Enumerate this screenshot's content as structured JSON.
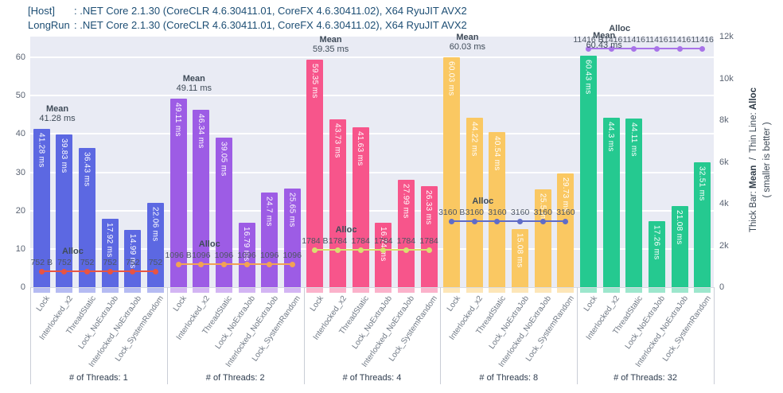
{
  "header": {
    "lines": [
      {
        "name": "[Host]",
        "text": ": .NET Core 2.1.30 (CoreCLR 4.6.30411.01, CoreFX 4.6.30411.02), X64 RyuJIT AVX2"
      },
      {
        "name": "LongRun",
        "text": ": .NET Core 2.1.30 (CoreCLR 4.6.30411.01, CoreFX 4.6.30411.02), X64 RyuJIT AVX2"
      }
    ]
  },
  "right_axis_title": {
    "seg1": "Thick Bar: ",
    "bold1": "Mean",
    "seg2": "  /  Thin Line: ",
    "bold2": "Alloc",
    "line2": "( smaller is better )"
  },
  "chart_data": {
    "type": "bar",
    "categories": [
      "Lock",
      "Interlocked_x2",
      "ThreadStatic",
      "Lock_NoExtraJob",
      "Interlocked_NoExtraJob",
      "Lock_SystemRandom"
    ],
    "legend": {
      "mean_label": "Mean",
      "alloc_label": "Alloc"
    },
    "y_left": {
      "ticks": [
        0,
        10,
        20,
        30,
        40,
        50,
        60
      ],
      "max": 65.4,
      "unit": "ms"
    },
    "y_right": {
      "ticks": [
        "0",
        "2k",
        "4k",
        "6k",
        "8k",
        "10k",
        "12k"
      ],
      "max": 12000,
      "unit": "B"
    },
    "groups": [
      {
        "label": "# of Threads: 1",
        "threads": 1,
        "bar_color": "#5c68e2",
        "line_color": "#e85442",
        "mean_ms": [
          41.28,
          39.83,
          36.43,
          17.92,
          14.99,
          22.06
        ],
        "mean_labels": [
          "41.28 ms",
          "39.83 ms",
          "36.43 ms",
          "17.92 ms",
          "14.99 ms",
          "22.06 ms"
        ],
        "alloc_bytes": 752,
        "alloc_labels": [
          "752 B",
          "752",
          "752",
          "752",
          "752",
          "752"
        ]
      },
      {
        "label": "# of Threads: 2",
        "threads": 2,
        "bar_color": "#9d5ce5",
        "line_color": "#f2a254",
        "mean_ms": [
          49.11,
          46.34,
          39.05,
          16.79,
          24.7,
          25.65
        ],
        "mean_labels": [
          "49.11 ms",
          "46.34 ms",
          "39.05 ms",
          "16.79 ms",
          "24.7 ms",
          "25.65 ms"
        ],
        "alloc_bytes": 1096,
        "alloc_labels": [
          "1096 B",
          "1096",
          "1096",
          "1096",
          "1096",
          "1096"
        ]
      },
      {
        "label": "# of Threads: 4",
        "threads": 4,
        "bar_color": "#f7558b",
        "line_color": "#d9e070",
        "mean_ms": [
          59.35,
          43.73,
          41.63,
          16.74,
          27.99,
          26.33
        ],
        "mean_labels": [
          "59.35 ms",
          "43.73 ms",
          "41.63 ms",
          "16.74 ms",
          "27.99 ms",
          "26.33 ms"
        ],
        "alloc_bytes": 1784,
        "alloc_labels": [
          "1784 B",
          "1784",
          "1784",
          "1784",
          "1784",
          "1784"
        ]
      },
      {
        "label": "# of Threads: 8",
        "threads": 8,
        "bar_color": "#fac862",
        "line_color": "#5f6cc8",
        "mean_ms": [
          60.03,
          44.22,
          40.54,
          15.08,
          25.5,
          29.73
        ],
        "mean_labels": [
          "60.03 ms",
          "44.22 ms",
          "40.54 ms",
          "15.08 ms",
          "25.5 ms",
          "29.73 ms"
        ],
        "alloc_bytes": 3160,
        "alloc_labels": [
          "3160 B",
          "3160",
          "3160",
          "3160",
          "3160",
          "3160"
        ]
      },
      {
        "label": "# of Threads: 32",
        "threads": 32,
        "bar_color": "#25c990",
        "line_color": "#a873e8",
        "mean_ms": [
          60.43,
          44.3,
          44.11,
          17.26,
          21.08,
          32.51
        ],
        "mean_labels": [
          "60.43 ms",
          "44.3 ms",
          "44.11 ms",
          "17.26 ms",
          "21.08 ms",
          "32.51 ms"
        ],
        "alloc_bytes": 11416,
        "alloc_labels": [
          "11416 B",
          "11416",
          "11416",
          "11416",
          "11416",
          "11416"
        ]
      }
    ]
  },
  "colors": {
    "plot_bg": "#e9ebf4",
    "grid": "#ffffff",
    "axis_text": "#5a6372",
    "annotation_text": "#3f4b58",
    "category_text": "#6f7884",
    "header_text": "#1d4e74"
  }
}
